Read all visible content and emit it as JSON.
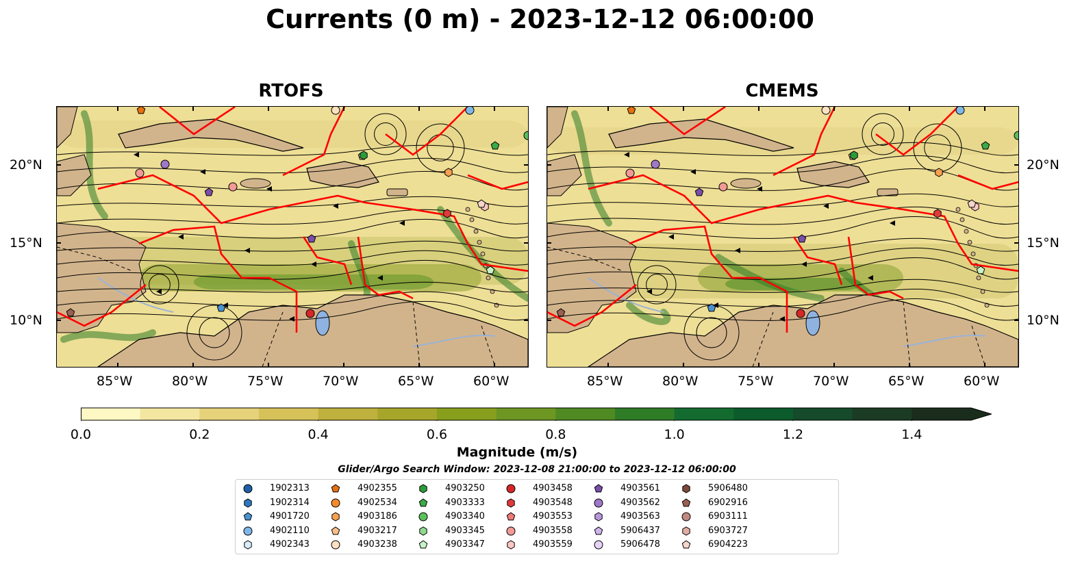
{
  "title": "Currents (0 m) - 2023-12-12 06:00:00",
  "panels": [
    {
      "title": "RTOFS"
    },
    {
      "title": "CMEMS"
    }
  ],
  "lon_ticks": [
    "85°W",
    "80°W",
    "75°W",
    "70°W",
    "65°W",
    "60°W"
  ],
  "lat_ticks": [
    "20°N",
    "15°N",
    "10°N"
  ],
  "colorbar": {
    "label": "Magnitude (m/s)",
    "ticks": [
      "0.0",
      "0.2",
      "0.4",
      "0.6",
      "0.8",
      "1.0",
      "1.2",
      "1.4"
    ],
    "range": [
      0,
      1.5
    ],
    "extend": "max",
    "colors": [
      "#fdf8c4",
      "#f3e6a0",
      "#e6d27a",
      "#d7c25a",
      "#bfb13e",
      "#a6a62b",
      "#889f1e",
      "#6d9622",
      "#4f8a22",
      "#2f7c27",
      "#136b2f",
      "#0c5b2c",
      "#154a2a",
      "#1b3b24",
      "#1a2c1b"
    ]
  },
  "search_window": "Glider/Argo Search Window: 2023-12-08 21:00:00 to 2023-12-12 06:00:00",
  "legend": [
    {
      "id": "1902313",
      "marker": "circle",
      "color": "#1f5fa8"
    },
    {
      "id": "1902314",
      "marker": "hexagon",
      "color": "#2f78c0"
    },
    {
      "id": "4901720",
      "marker": "pentagon",
      "color": "#4a92d0"
    },
    {
      "id": "4902110",
      "marker": "circle",
      "color": "#7fb8e8"
    },
    {
      "id": "4902343",
      "marker": "hexagon",
      "color": "#d7ecfb"
    },
    {
      "id": "4902355",
      "marker": "pentagon",
      "color": "#e8700f"
    },
    {
      "id": "4902534",
      "marker": "circle",
      "color": "#f58a2a"
    },
    {
      "id": "4903186",
      "marker": "hexagon",
      "color": "#f7a050"
    },
    {
      "id": "4903217",
      "marker": "pentagon",
      "color": "#fbc08a"
    },
    {
      "id": "4903238",
      "marker": "circle",
      "color": "#fde1c2"
    },
    {
      "id": "4903250",
      "marker": "hexagon",
      "color": "#2c9b3c"
    },
    {
      "id": "4903333",
      "marker": "pentagon",
      "color": "#3cab48"
    },
    {
      "id": "4903340",
      "marker": "circle",
      "color": "#5cc05c"
    },
    {
      "id": "4903345",
      "marker": "hexagon",
      "color": "#8fd890"
    },
    {
      "id": "4903347",
      "marker": "pentagon",
      "color": "#c9f2c6"
    },
    {
      "id": "4903458",
      "marker": "circle",
      "color": "#d62728"
    },
    {
      "id": "4903548",
      "marker": "hexagon",
      "color": "#e03a3a"
    },
    {
      "id": "4903553",
      "marker": "pentagon",
      "color": "#ee7a78"
    },
    {
      "id": "4903558",
      "marker": "circle",
      "color": "#f29a96"
    },
    {
      "id": "4903559",
      "marker": "hexagon",
      "color": "#f9c6c3"
    },
    {
      "id": "4903561",
      "marker": "pentagon",
      "color": "#7b4ea8"
    },
    {
      "id": "4903562",
      "marker": "circle",
      "color": "#9f78c8"
    },
    {
      "id": "4903563",
      "marker": "hexagon",
      "color": "#b797dc"
    },
    {
      "id": "5906437",
      "marker": "pentagon",
      "color": "#cfb4ec"
    },
    {
      "id": "5906478",
      "marker": "circle",
      "color": "#e5d3f5"
    },
    {
      "id": "5906480",
      "marker": "hexagon",
      "color": "#7a4a3a"
    },
    {
      "id": "6902916",
      "marker": "pentagon",
      "color": "#9a6050"
    },
    {
      "id": "6903111",
      "marker": "circle",
      "color": "#c08a80"
    },
    {
      "id": "6903727",
      "marker": "hexagon",
      "color": "#e2ada2"
    },
    {
      "id": "6904223",
      "marker": "pentagon",
      "color": "#f6d5cc"
    }
  ]
}
